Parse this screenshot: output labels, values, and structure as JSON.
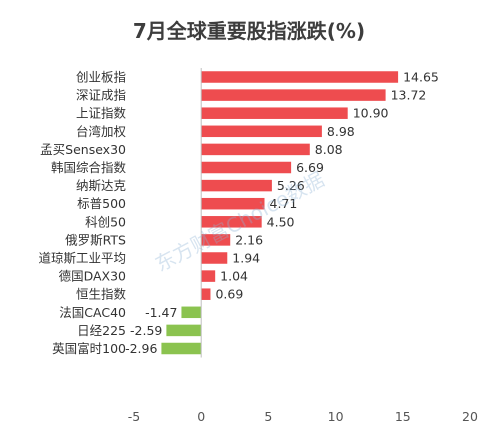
{
  "chart_data": {
    "type": "bar",
    "orientation": "horizontal",
    "title": "7月全球重要股指涨跌(%)",
    "categories": [
      "创业板指",
      "深证成指",
      "上证指数",
      "台湾加权",
      "孟买Sensex30",
      "韩国综合指数",
      "纳斯达克",
      "标普500",
      "科创50",
      "俄罗斯RTS",
      "道琼斯工业平均",
      "德国DAX30",
      "恒生指数",
      "法国CAC40",
      "日经225",
      "英国富时100"
    ],
    "values": [
      14.65,
      13.72,
      10.9,
      8.98,
      8.08,
      6.69,
      5.26,
      4.71,
      4.5,
      2.16,
      1.94,
      1.04,
      0.69,
      -1.47,
      -2.59,
      -2.96
    ],
    "value_labels": [
      "14.65",
      "13.72",
      "10.90",
      "8.98",
      "8.08",
      "6.69",
      "5.26",
      "4.71",
      "4.50",
      "2.16",
      "1.94",
      "1.04",
      "0.69",
      "-1.47",
      "-2.59",
      "-2.96"
    ],
    "xticks": [
      -5,
      0,
      5,
      10,
      15,
      20
    ],
    "xtick_labels": [
      "-5",
      "0",
      "5",
      "10",
      "15",
      "20"
    ],
    "xlim": [
      -5,
      20
    ],
    "xlabel": "",
    "ylabel": "",
    "grid": false,
    "colors": {
      "positive": "#ee4c4f",
      "negative": "#8bc34f"
    }
  },
  "watermark": "东方财富Choice数据"
}
